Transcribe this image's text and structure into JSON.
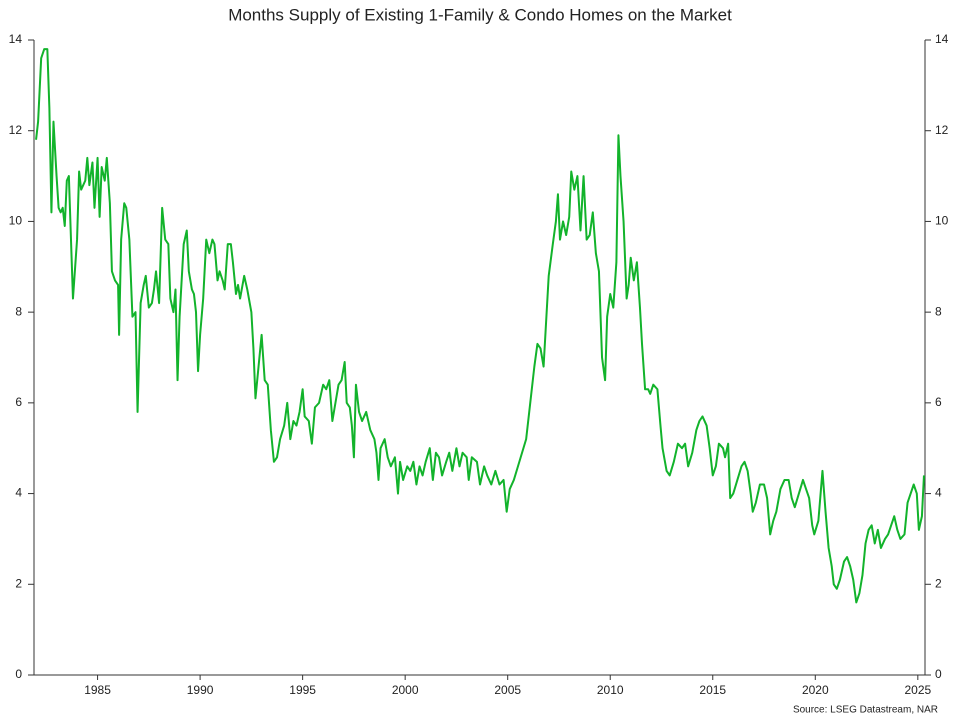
{
  "chart_data": {
    "type": "line",
    "title": "Months Supply of Existing 1-Family & Condo Homes on the Market",
    "source": "Source: LSEG Datastream, NAR",
    "xlim": [
      1981.9,
      2025.35
    ],
    "xticks": [
      1985,
      1990,
      1995,
      2000,
      2005,
      2010,
      2015,
      2020,
      2025
    ],
    "ylim": [
      0,
      14
    ],
    "yticks": [
      0,
      2,
      4,
      6,
      8,
      10,
      12,
      14
    ],
    "y2lim": [
      0,
      14
    ],
    "y2ticks": [
      0,
      2,
      4,
      6,
      8,
      10,
      12,
      14
    ],
    "grid": false,
    "series": [
      {
        "color": "#12b32b",
        "x": [
          1982.0,
          1982.1,
          1982.25,
          1982.4,
          1982.55,
          1982.65,
          1982.75,
          1982.85,
          1983.0,
          1983.1,
          1983.2,
          1983.3,
          1983.4,
          1983.5,
          1983.6,
          1983.8,
          1984.0,
          1984.1,
          1984.2,
          1984.4,
          1984.5,
          1984.6,
          1984.75,
          1984.85,
          1985.0,
          1985.1,
          1985.2,
          1985.35,
          1985.45,
          1985.6,
          1985.7,
          1985.85,
          1986.0,
          1986.05,
          1986.15,
          1986.3,
          1986.4,
          1986.55,
          1986.7,
          1986.85,
          1986.95,
          1987.1,
          1987.25,
          1987.35,
          1987.5,
          1987.65,
          1987.75,
          1987.85,
          1988.0,
          1988.1,
          1988.15,
          1988.3,
          1988.45,
          1988.55,
          1988.7,
          1988.8,
          1988.9,
          1989.0,
          1989.2,
          1989.35,
          1989.45,
          1989.6,
          1989.7,
          1989.8,
          1989.9,
          1990.0,
          1990.15,
          1990.3,
          1990.45,
          1990.6,
          1990.7,
          1990.85,
          1990.95,
          1991.1,
          1991.2,
          1991.35,
          1991.5,
          1991.6,
          1991.75,
          1991.85,
          1991.95,
          1992.15,
          1992.3,
          1992.5,
          1992.6,
          1992.7,
          1992.85,
          1993.0,
          1993.15,
          1993.3,
          1993.45,
          1993.6,
          1993.75,
          1993.9,
          1994.1,
          1994.25,
          1994.4,
          1994.55,
          1994.7,
          1994.85,
          1995.0,
          1995.1,
          1995.3,
          1995.45,
          1995.6,
          1995.8,
          1996.0,
          1996.15,
          1996.3,
          1996.45,
          1996.6,
          1996.75,
          1996.9,
          1997.05,
          1997.15,
          1997.3,
          1997.4,
          1997.5,
          1997.6,
          1997.75,
          1997.9,
          1998.1,
          1998.3,
          1998.5,
          1998.6,
          1998.7,
          1998.8,
          1999.0,
          1999.15,
          1999.3,
          1999.5,
          1999.65,
          1999.75,
          1999.9,
          2000.1,
          2000.25,
          2000.4,
          2000.55,
          2000.7,
          2000.85,
          2001.0,
          2001.2,
          2001.35,
          2001.5,
          2001.65,
          2001.8,
          2002.0,
          2002.15,
          2002.3,
          2002.5,
          2002.65,
          2002.8,
          2003.0,
          2003.1,
          2003.25,
          2003.5,
          2003.65,
          2003.85,
          2004.0,
          2004.2,
          2004.4,
          2004.6,
          2004.8,
          2004.95,
          2005.1,
          2005.3,
          2005.5,
          2005.7,
          2005.9,
          2006.1,
          2006.3,
          2006.45,
          2006.6,
          2006.75,
          2006.85,
          2007.0,
          2007.2,
          2007.35,
          2007.45,
          2007.55,
          2007.7,
          2007.85,
          2008.0,
          2008.1,
          2008.25,
          2008.4,
          2008.55,
          2008.7,
          2008.85,
          2009.0,
          2009.15,
          2009.3,
          2009.45,
          2009.6,
          2009.75,
          2009.85,
          2010.0,
          2010.15,
          2010.3,
          2010.4,
          2010.5,
          2010.65,
          2010.8,
          2010.9,
          2011.0,
          2011.15,
          2011.3,
          2011.45,
          2011.55,
          2011.7,
          2011.85,
          2011.95,
          2012.1,
          2012.3,
          2012.45,
          2012.55,
          2012.75,
          2012.9,
          2013.1,
          2013.3,
          2013.5,
          2013.65,
          2013.8,
          2014.0,
          2014.2,
          2014.35,
          2014.5,
          2014.7,
          2014.85,
          2015.0,
          2015.15,
          2015.3,
          2015.5,
          2015.6,
          2015.75,
          2015.85,
          2016.0,
          2016.2,
          2016.4,
          2016.55,
          2016.7,
          2016.85,
          2016.95,
          2017.1,
          2017.3,
          2017.5,
          2017.65,
          2017.8,
          2017.95,
          2018.1,
          2018.3,
          2018.5,
          2018.7,
          2018.85,
          2019.0,
          2019.2,
          2019.4,
          2019.55,
          2019.7,
          2019.85,
          2019.95,
          2020.15,
          2020.35,
          2020.5,
          2020.65,
          2020.8,
          2020.9,
          2021.05,
          2021.2,
          2021.4,
          2021.55,
          2021.7,
          2021.85,
          2022.0,
          2022.15,
          2022.3,
          2022.45,
          2022.6,
          2022.75,
          2022.9,
          2023.05,
          2023.2,
          2023.4,
          2023.55,
          2023.7,
          2023.85,
          2024.0,
          2024.15,
          2024.35,
          2024.5,
          2024.65,
          2024.8,
          2024.95,
          2025.05,
          2025.2,
          2025.3
        ],
        "values": [
          11.8,
          12.2,
          13.6,
          13.8,
          13.8,
          12.5,
          10.2,
          12.2,
          11.0,
          10.3,
          10.2,
          10.3,
          9.9,
          10.9,
          11.0,
          8.3,
          9.6,
          11.1,
          10.7,
          10.9,
          11.4,
          10.8,
          11.3,
          10.3,
          11.4,
          10.1,
          11.2,
          10.9,
          11.4,
          10.4,
          8.9,
          8.7,
          8.6,
          7.5,
          9.6,
          10.4,
          10.3,
          9.6,
          7.9,
          8.0,
          5.8,
          8.2,
          8.6,
          8.8,
          8.1,
          8.2,
          8.5,
          8.9,
          8.2,
          9.6,
          10.3,
          9.6,
          9.5,
          8.3,
          8.0,
          8.5,
          6.5,
          7.9,
          9.5,
          9.8,
          8.9,
          8.5,
          8.4,
          8.0,
          6.7,
          7.5,
          8.3,
          9.6,
          9.3,
          9.6,
          9.5,
          8.7,
          8.9,
          8.7,
          8.5,
          9.5,
          9.5,
          9.1,
          8.4,
          8.6,
          8.3,
          8.8,
          8.5,
          8.0,
          7.2,
          6.1,
          6.8,
          7.5,
          6.5,
          6.4,
          5.4,
          4.7,
          4.8,
          5.2,
          5.5,
          6.0,
          5.2,
          5.6,
          5.5,
          5.8,
          6.3,
          5.7,
          5.6,
          5.1,
          5.9,
          6.0,
          6.4,
          6.3,
          6.5,
          5.6,
          6.0,
          6.4,
          6.5,
          6.9,
          6.0,
          5.9,
          5.5,
          4.8,
          6.4,
          5.8,
          5.6,
          5.8,
          5.4,
          5.2,
          4.9,
          4.3,
          5.0,
          5.2,
          4.8,
          4.6,
          4.8,
          4.0,
          4.7,
          4.3,
          4.6,
          4.5,
          4.7,
          4.2,
          4.6,
          4.4,
          4.7,
          5.0,
          4.3,
          4.9,
          4.8,
          4.4,
          4.7,
          4.9,
          4.5,
          5.0,
          4.6,
          4.9,
          4.8,
          4.3,
          4.8,
          4.7,
          4.2,
          4.6,
          4.4,
          4.2,
          4.5,
          4.2,
          4.3,
          3.6,
          4.1,
          4.3,
          4.6,
          4.9,
          5.2,
          6.0,
          6.8,
          7.3,
          7.2,
          6.8,
          7.6,
          8.8,
          9.5,
          10.0,
          10.6,
          9.6,
          10.0,
          9.7,
          10.1,
          11.1,
          10.7,
          11.0,
          9.8,
          11.0,
          9.6,
          9.7,
          10.2,
          9.3,
          8.9,
          7.0,
          6.5,
          7.9,
          8.4,
          8.1,
          9.1,
          11.9,
          11.0,
          10.0,
          8.3,
          8.6,
          9.2,
          8.7,
          9.1,
          8.1,
          7.3,
          6.3,
          6.3,
          6.2,
          6.4,
          6.3,
          5.5,
          5.0,
          4.5,
          4.4,
          4.7,
          5.1,
          5.0,
          5.1,
          4.6,
          4.9,
          5.4,
          5.6,
          5.7,
          5.5,
          5.0,
          4.4,
          4.6,
          5.1,
          5.0,
          4.8,
          5.1,
          3.9,
          4.0,
          4.3,
          4.6,
          4.7,
          4.5,
          4.0,
          3.6,
          3.8,
          4.2,
          4.2,
          3.9,
          3.1,
          3.4,
          3.6,
          4.1,
          4.3,
          4.3,
          3.9,
          3.7,
          4.0,
          4.3,
          4.1,
          3.9,
          3.3,
          3.1,
          3.4,
          4.5,
          3.6,
          2.8,
          2.4,
          2.0,
          1.9,
          2.1,
          2.5,
          2.6,
          2.4,
          2.1,
          1.6,
          1.8,
          2.2,
          2.9,
          3.2,
          3.3,
          2.9,
          3.2,
          2.8,
          3.0,
          3.1,
          3.3,
          3.5,
          3.2,
          3.0,
          3.1,
          3.8,
          4.0,
          4.2,
          4.0,
          3.2,
          3.5,
          4.4
        ]
      }
    ]
  }
}
